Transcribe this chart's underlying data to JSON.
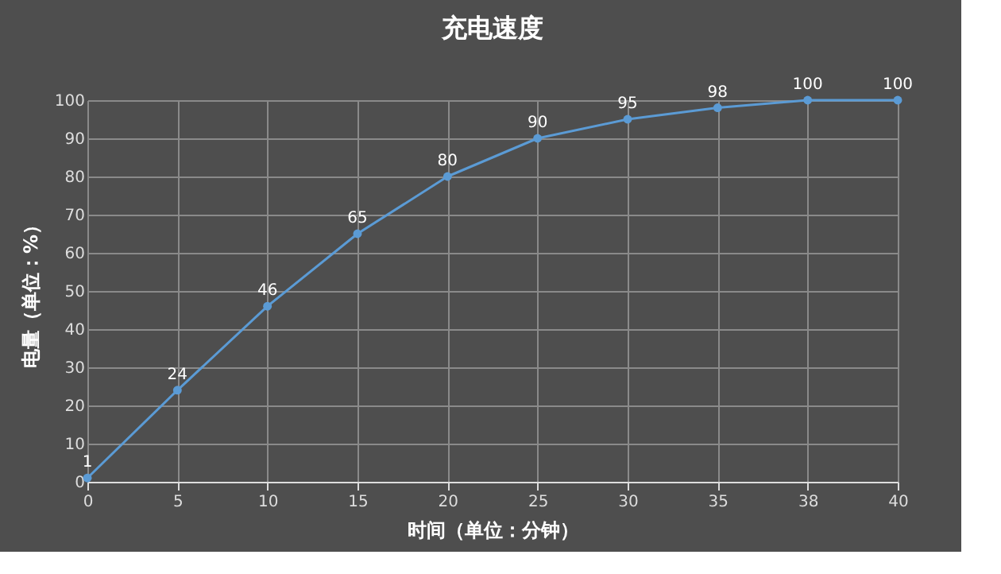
{
  "chart_data": {
    "type": "line",
    "title": "充电速度",
    "xlabel": "时间（单位：分钟）",
    "ylabel": "电量（单位：%）",
    "categories": [
      "0",
      "5",
      "10",
      "15",
      "20",
      "25",
      "30",
      "35",
      "38",
      "40"
    ],
    "series": [
      {
        "color": "#5b9bd5",
        "values": [
          1,
          24,
          46,
          65,
          80,
          90,
          95,
          98,
          100,
          100
        ]
      }
    ],
    "ylim": [
      0,
      100
    ],
    "yticks": [
      0,
      10,
      20,
      30,
      40,
      50,
      60,
      70,
      80,
      90,
      100
    ],
    "grid": true,
    "data_labels": true,
    "marker": "circle",
    "line_style": "solid"
  }
}
